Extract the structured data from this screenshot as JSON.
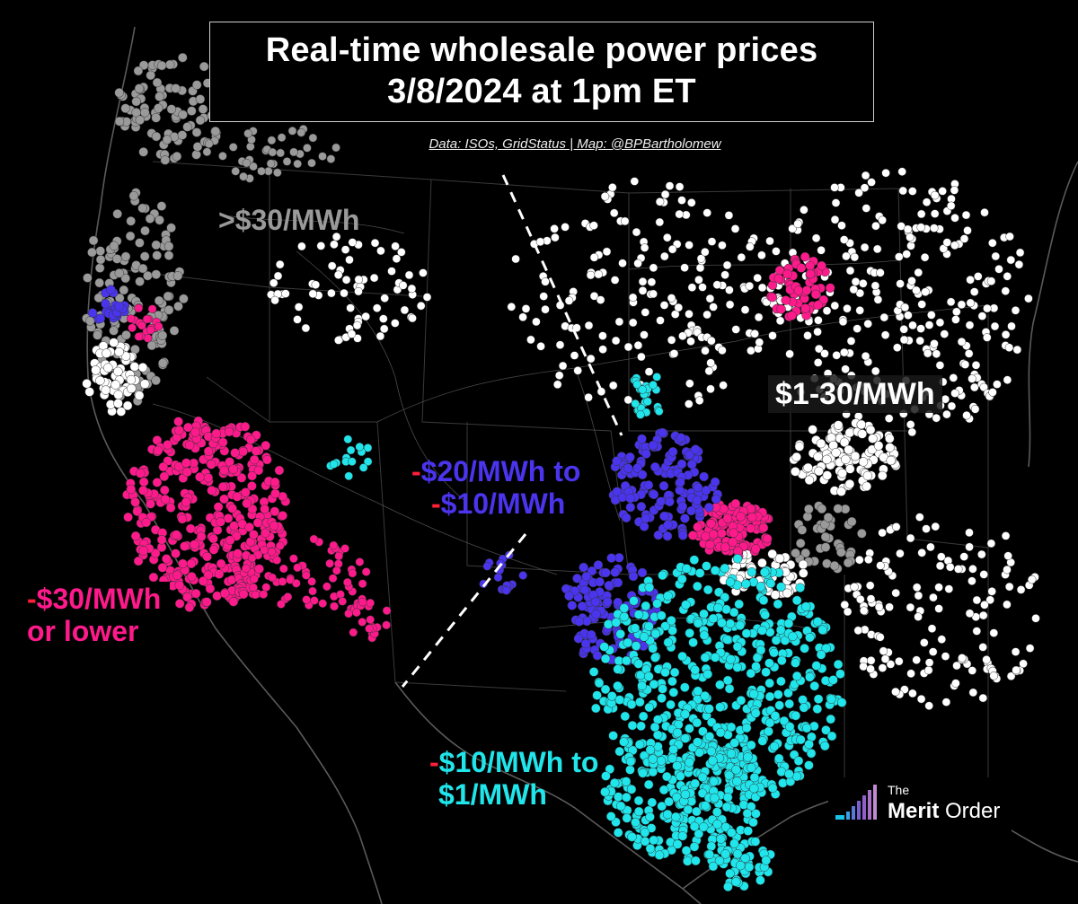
{
  "title": {
    "line1": "Real-time wholesale power prices",
    "line2": "3/8/2024 at 1pm ET"
  },
  "credit": "Data: ISOs, GridStatus | Map: @BPBartholomew",
  "labels": {
    "gray": ">$30/MWh",
    "white": "$1-30/MWh",
    "purple_sign": "-",
    "purple_line1": "$20/MWh to",
    "purple_sign2": "-",
    "purple_line2": "$10/MWh",
    "pink_sign": "-",
    "pink_line1": "$30/MWh",
    "pink_line2": "or lower",
    "cyan_sign": "-",
    "cyan_line1": "$10/MWh to",
    "cyan_line2": "$1/MWh"
  },
  "logo": {
    "small": "The",
    "bold": "Merit",
    "regular": "Order"
  },
  "colors": {
    "background": "#000000",
    "above_30": "#9a9a9a",
    "from_1_to_30": "#ffffff",
    "neg20_to_neg10": "#4a34ee",
    "neg30_or_lower": "#ff1a8c",
    "neg10_to_1": "#20e6ec",
    "negative_sign": "#ff1f3a"
  }
}
